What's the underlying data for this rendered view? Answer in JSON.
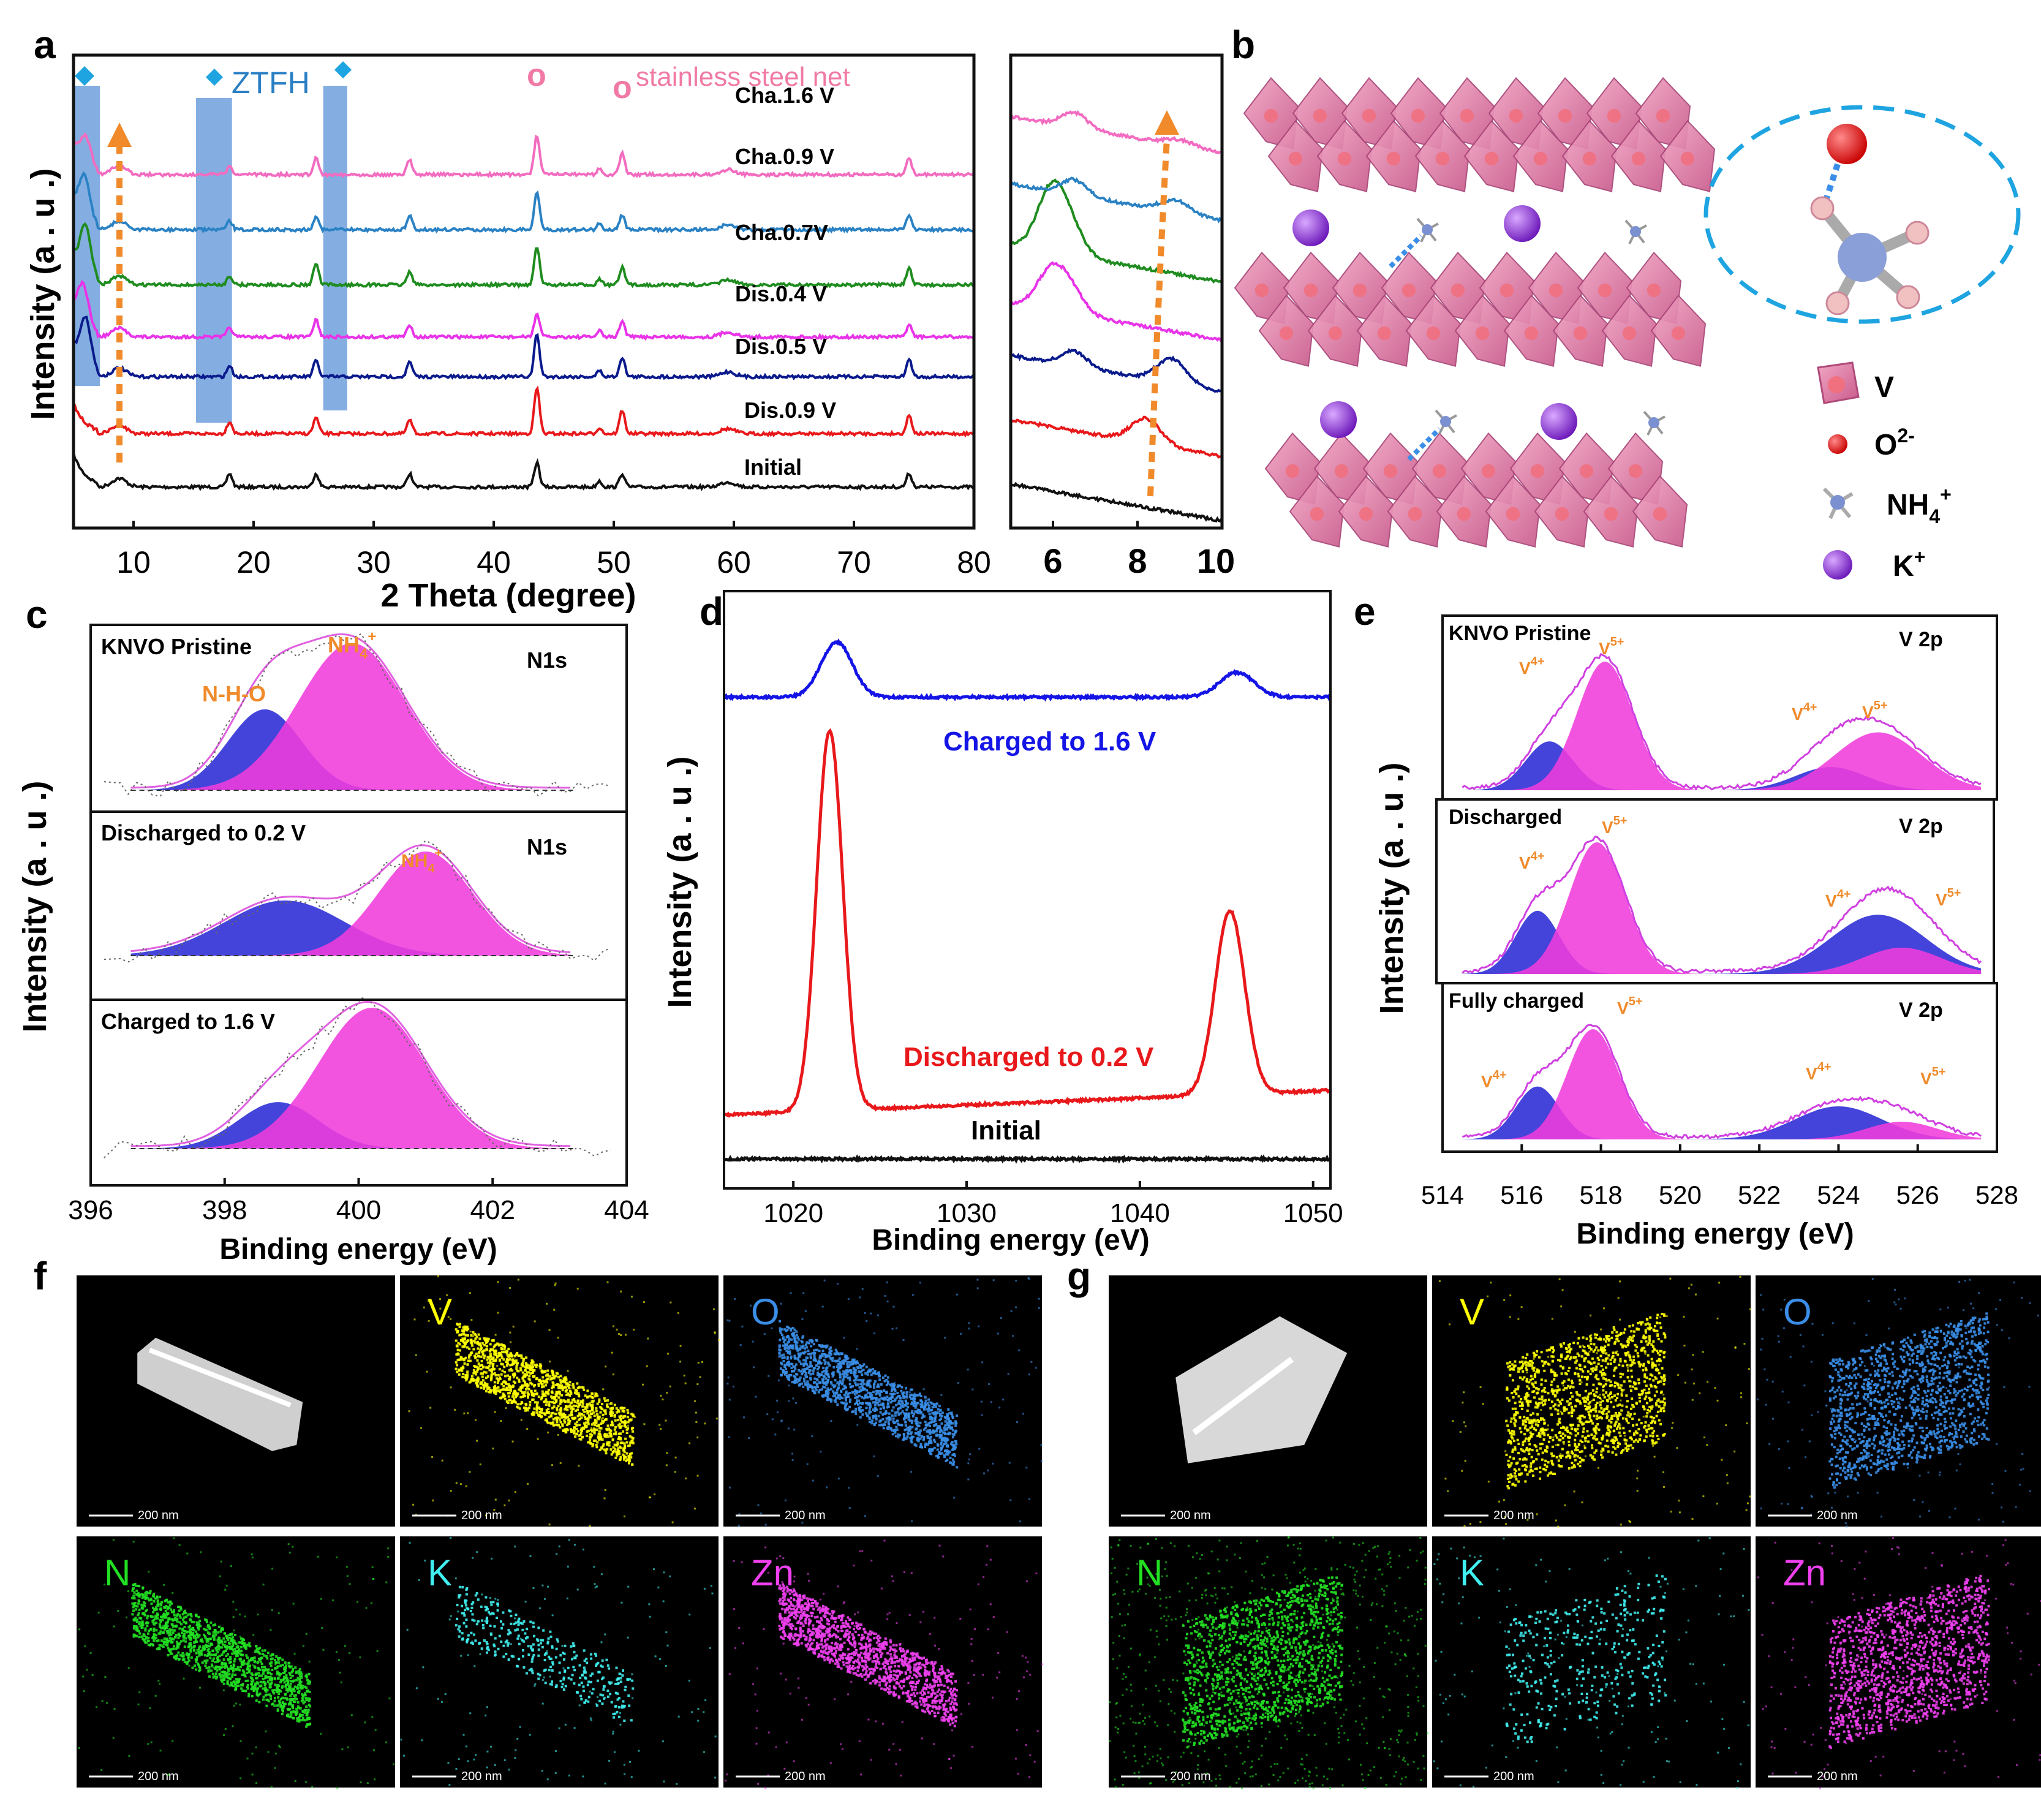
{
  "panel_letters": [
    "a",
    "b",
    "c",
    "d",
    "e",
    "f",
    "g"
  ],
  "colors": {
    "black": "#111111",
    "red": "#e8181b",
    "navy": "#0a1a8c",
    "magenta": "#e833e8",
    "green": "#1f8c1f",
    "steel": "#2a82c4",
    "pink": "#f26cc0",
    "orange": "#f08a2a",
    "cyan_marker": "#1ea4e0",
    "band": "#6fa0dc",
    "ring": "#f07aa5",
    "blue_d": "#1414e6",
    "fit_blue": "#2a2ad6",
    "fit_pink": "#f03cdc",
    "label_orange": "#f08a2a"
  },
  "chart_data": [
    {
      "id": "a-main",
      "type": "line",
      "xlabel": "2 Theta (degree)",
      "ylabel": "Intensity (a . u .)",
      "xlim": [
        5,
        80
      ],
      "xticks": [
        10,
        20,
        30,
        40,
        50,
        60,
        70,
        80
      ],
      "series": [
        {
          "name": "Initial",
          "color": "black"
        },
        {
          "name": "Dis.0.9 V",
          "color": "red"
        },
        {
          "name": "Dis.0.5 V",
          "color": "navy"
        },
        {
          "name": "Dis.0.4 V",
          "color": "magenta"
        },
        {
          "name": "Cha.0.7V",
          "color": "green"
        },
        {
          "name": "Cha.0.9 V",
          "color": "steel"
        },
        {
          "name": "Cha.1.6 V",
          "color": "pink"
        }
      ],
      "peaks_common": [
        18,
        25.2,
        33,
        43.6,
        50.7,
        74.6
      ],
      "annotations": {
        "ztfh": "ZTFH",
        "steel_net": "stainless steel net",
        "ring_mark": "o"
      },
      "ztfh_bands": [
        [
          5,
          7.2
        ],
        [
          15.2,
          18.2
        ],
        [
          25.8,
          27.8
        ]
      ]
    },
    {
      "id": "a-zoom",
      "type": "line",
      "xlim": [
        5,
        10
      ],
      "xticks": [
        6,
        8,
        10
      ],
      "series": [
        "Initial",
        "Dis.0.9 V",
        "Dis.0.5 V",
        "Dis.0.4 V",
        "Cha.0.7V",
        "Cha.0.9 V",
        "Cha.1.6 V"
      ]
    },
    {
      "id": "b-legend",
      "type": "table",
      "entries": [
        {
          "key": "V",
          "label": "V"
        },
        {
          "key": "O",
          "label": "O",
          "sup": "2-"
        },
        {
          "key": "NH",
          "label": "NH",
          "sub": "4",
          "sup": "+"
        },
        {
          "key": "K",
          "label": "K",
          "sup": "+"
        }
      ]
    },
    {
      "id": "c-n1s",
      "type": "area",
      "xlabel": "Binding energy (eV)",
      "ylabel": "Intensity (a . u .)",
      "xlim": [
        396,
        404
      ],
      "xticks": [
        396,
        398,
        400,
        402,
        404
      ],
      "subpanels": [
        {
          "title": "KNVO Pristine",
          "element": "N1s",
          "labels": [
            "N-H-O",
            "NH4+"
          ],
          "peaks": [
            {
              "center": 398.6,
              "height": 0.55,
              "width": 0.55,
              "color": "fit_blue"
            },
            {
              "center": 399.9,
              "height": 1.0,
              "width": 0.8,
              "color": "fit_pink"
            }
          ]
        },
        {
          "title": "Discharged to 0.2 V",
          "element": "N1s",
          "labels": [
            "NH4+"
          ],
          "peaks": [
            {
              "center": 398.9,
              "height": 0.45,
              "width": 0.9,
              "color": "fit_blue"
            },
            {
              "center": 401.0,
              "height": 0.85,
              "width": 0.7,
              "color": "fit_pink"
            }
          ]
        },
        {
          "title": "Charged to 1.6 V",
          "element": "",
          "peaks": [
            {
              "center": 398.8,
              "height": 0.33,
              "width": 0.6,
              "color": "fit_blue"
            },
            {
              "center": 400.2,
              "height": 1.0,
              "width": 0.8,
              "color": "fit_pink"
            }
          ]
        }
      ]
    },
    {
      "id": "d-zn2p",
      "type": "line",
      "xlabel": "Binding energy (eV)",
      "ylabel": "Intensity (a . u .)",
      "xlim": [
        1016,
        1051
      ],
      "xticks": [
        1020,
        1030,
        1040,
        1050
      ],
      "series": [
        {
          "name": "Charged to 1.6 V",
          "color": "blue_d",
          "peaks": [
            1022.5,
            1045.6
          ]
        },
        {
          "name": "Discharged to 0.2 V",
          "color": "red",
          "peaks": [
            1022.1,
            1045.2
          ]
        },
        {
          "name": "Initial",
          "color": "black",
          "peaks": []
        }
      ]
    },
    {
      "id": "e-v2p",
      "type": "area",
      "xlabel": "Binding energy (eV)",
      "ylabel": "Intensity (a . u .)",
      "xlim": [
        514,
        528
      ],
      "xticks": [
        514,
        516,
        518,
        520,
        522,
        524,
        526,
        528
      ],
      "subpanels": [
        {
          "title": "KNVO Pristine",
          "element": "V 2p"
        },
        {
          "title": "Discharged",
          "element": "V 2p"
        },
        {
          "title": "Fully charged",
          "element": "V 2p"
        }
      ]
    }
  ],
  "texts": {
    "a_xlabel": "2 Theta (degree)",
    "a_ylabel": "Intensity (a . u .)",
    "ztfh": "ZTFH",
    "steel_net": "stainless steel net",
    "c_ylabel": "Intensity (a . u .)",
    "c_xlabel": "Binding energy (eV)",
    "c1_title": "KNVO Pristine",
    "c1_el": "N1s",
    "c1_nho": "N-H-O",
    "c_nh": "NH",
    "c_sub4": "4",
    "c_supplus": "+",
    "c2_title": "Discharged to 0.2 V",
    "c2_el": "N1s",
    "c3_title": "Charged to 1.6 V",
    "d_ylabel": "Intensity (a . u .)",
    "d_xlabel": "Binding energy (eV)",
    "d_charged": "Charged to 1.6 V",
    "d_discharged": "Discharged to 0.2 V",
    "d_initial": "Initial",
    "e_ylabel": "Intensity (a . u .)",
    "e_xlabel": "Binding energy (eV)",
    "e1_title": "KNVO Pristine",
    "e2_title": "Discharged",
    "e3_title": "Fully charged",
    "e_el": "V 2p",
    "e_v": "V",
    "e_4p": "4+",
    "e_5p": "5+",
    "b_V": "V",
    "b_O": "O",
    "b_O_sup": "2-",
    "b_NH": "NH",
    "b_NH_sub": "4",
    "b_NH_sup": "+",
    "b_K": "K",
    "b_K_sup": "+",
    "scale": "200 nm"
  },
  "maps": {
    "f": [
      {
        "label": "",
        "kind": "haadf",
        "color": "#dddddd"
      },
      {
        "label": "V",
        "kind": "dots",
        "color": "#ffff00"
      },
      {
        "label": "O",
        "kind": "dots",
        "color": "#3a8ee8"
      },
      {
        "label": "N",
        "kind": "dots",
        "color": "#22e022"
      },
      {
        "label": "K",
        "kind": "dots",
        "color": "#40f0f0"
      },
      {
        "label": "Zn",
        "kind": "dots",
        "color": "#f040f0"
      }
    ],
    "g": [
      {
        "label": "",
        "kind": "haadf",
        "color": "#dddddd"
      },
      {
        "label": "V",
        "kind": "dots",
        "color": "#ffff00"
      },
      {
        "label": "O",
        "kind": "dots",
        "color": "#3a8ee8"
      },
      {
        "label": "N",
        "kind": "dots",
        "color": "#22e022"
      },
      {
        "label": "K",
        "kind": "dots",
        "color": "#40f0f0"
      },
      {
        "label": "Zn",
        "kind": "dots",
        "color": "#f040f0"
      }
    ]
  }
}
